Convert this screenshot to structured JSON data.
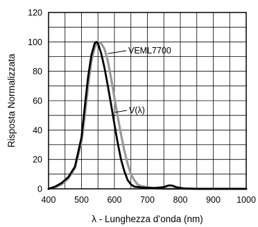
{
  "chart_data": {
    "type": "line",
    "title": "",
    "xlabel": "λ - Lunghezza d’onda (nm)",
    "ylabel": "Risposta Normalizzata",
    "xlim": [
      400,
      1000
    ],
    "ylim": [
      0,
      120
    ],
    "xticks": [
      400,
      500,
      600,
      700,
      800,
      900,
      1000
    ],
    "yticks": [
      0,
      20,
      40,
      60,
      80,
      100,
      120
    ],
    "grid": true,
    "series": [
      {
        "name": "V(λ)",
        "color": "#999999",
        "points": [
          [
            400,
            0
          ],
          [
            420,
            1
          ],
          [
            440,
            3
          ],
          [
            460,
            7
          ],
          [
            480,
            14
          ],
          [
            500,
            32
          ],
          [
            510,
            50
          ],
          [
            520,
            70
          ],
          [
            530,
            87
          ],
          [
            540,
            96
          ],
          [
            550,
            100
          ],
          [
            560,
            99
          ],
          [
            570,
            95
          ],
          [
            580,
            87
          ],
          [
            590,
            75
          ],
          [
            600,
            62
          ],
          [
            610,
            49
          ],
          [
            620,
            37
          ],
          [
            630,
            26
          ],
          [
            640,
            17
          ],
          [
            650,
            10
          ],
          [
            660,
            6
          ],
          [
            670,
            3
          ],
          [
            680,
            2
          ],
          [
            700,
            1
          ],
          [
            720,
            0.5
          ],
          [
            750,
            0
          ],
          [
            800,
            0
          ],
          [
            1000,
            0
          ]
        ]
      },
      {
        "name": "VEML7700",
        "color": "#000000",
        "points": [
          [
            400,
            0
          ],
          [
            420,
            1.5
          ],
          [
            440,
            4
          ],
          [
            460,
            8
          ],
          [
            480,
            15
          ],
          [
            500,
            35
          ],
          [
            510,
            56
          ],
          [
            520,
            76
          ],
          [
            530,
            91
          ],
          [
            540,
            99
          ],
          [
            545,
            100
          ],
          [
            550,
            99
          ],
          [
            560,
            92
          ],
          [
            570,
            82
          ],
          [
            580,
            70
          ],
          [
            590,
            57
          ],
          [
            600,
            44
          ],
          [
            610,
            31
          ],
          [
            620,
            20
          ],
          [
            630,
            12
          ],
          [
            640,
            6
          ],
          [
            650,
            3
          ],
          [
            660,
            1.5
          ],
          [
            680,
            1
          ],
          [
            720,
            0.5
          ],
          [
            750,
            1.2
          ],
          [
            765,
            2.3
          ],
          [
            775,
            2.2
          ],
          [
            790,
            1
          ],
          [
            810,
            0.3
          ],
          [
            850,
            0
          ],
          [
            1000,
            0
          ]
        ]
      }
    ],
    "annotations": [
      {
        "text": "VEML7700",
        "series": "VEML7700",
        "at": [
          580,
          92
        ]
      },
      {
        "text": "V(λ)",
        "series": "V(λ)",
        "at": [
          600,
          52
        ]
      }
    ]
  }
}
